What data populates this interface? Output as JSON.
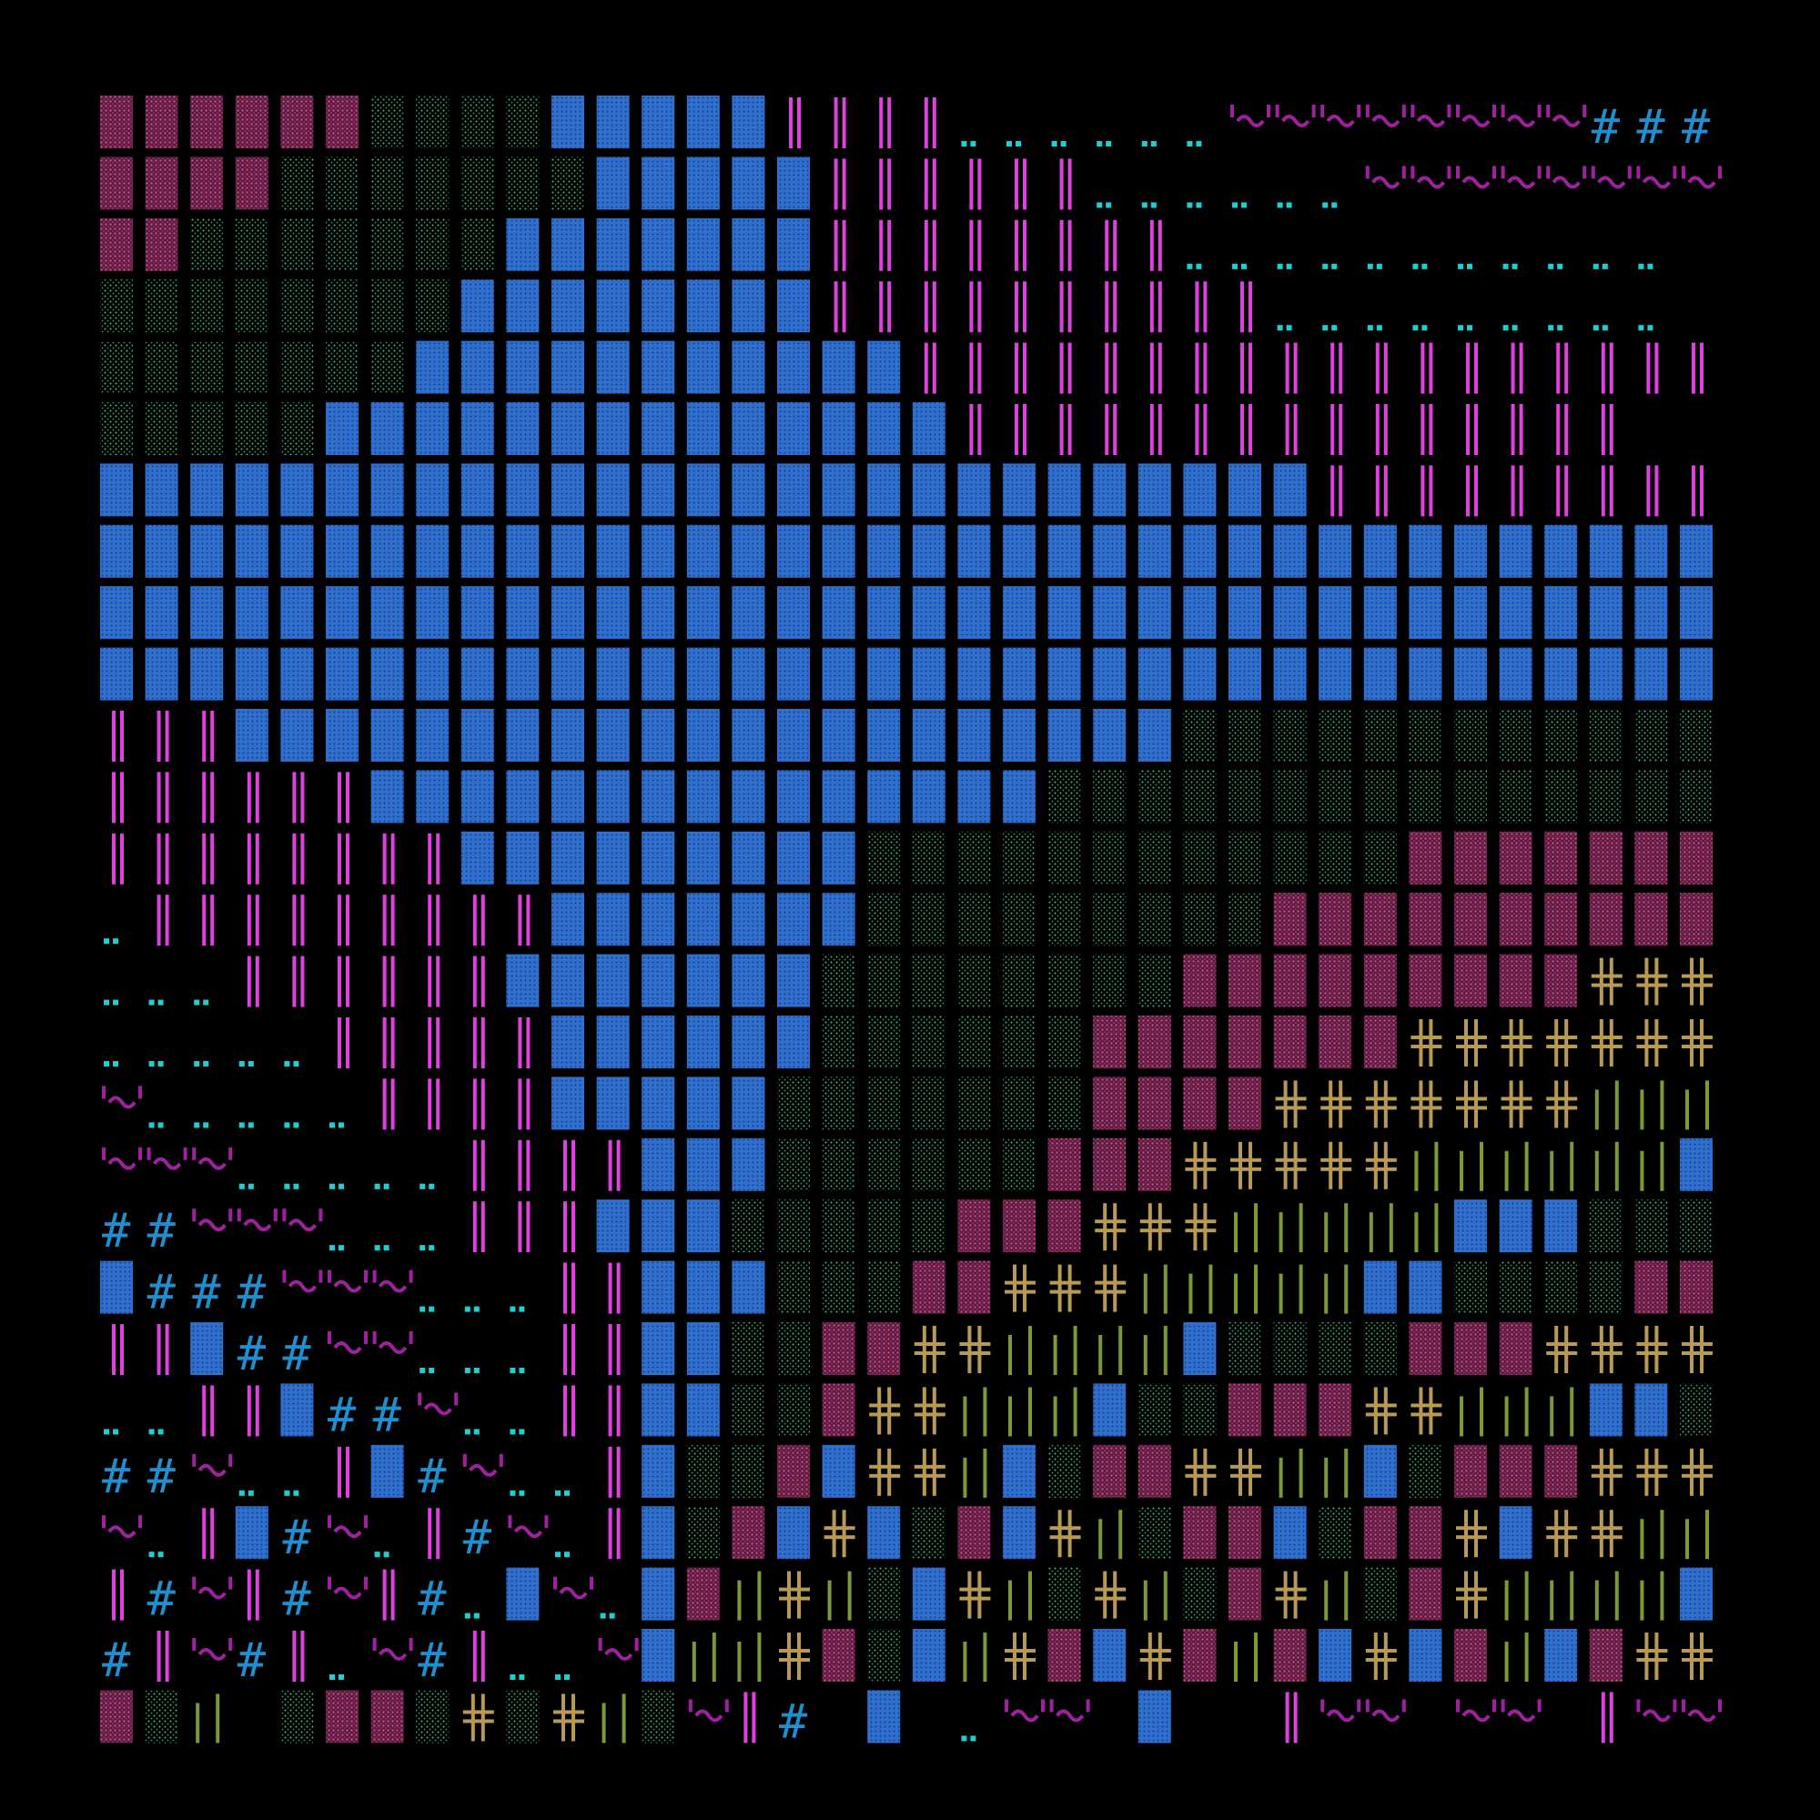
{
  "title": "",
  "palette": {
    "background": "#000000",
    "pink_stipple": "#b83a7a",
    "green_stipple": "#3fbf7f",
    "blue_block": "#2e6fcf",
    "blue_dots": "#1a3d7a",
    "magenta_bars": "#e040e0",
    "cyan_dots": "#1fcfcf",
    "purple_tilde": "#a020a0",
    "blue_hash": "#1f8fd0",
    "tan_cross": "#b89a55",
    "olive_bars": "#7a9a35"
  },
  "glyph_kinds": [
    "pink-stipple",
    "green-stipple",
    "blue-block",
    "magenta-bars",
    "cyan-dots",
    "purple-tilde",
    "blue-hash",
    "tan-cross",
    "olive-bars"
  ],
  "grid": {
    "columns": 36,
    "rows": 27
  }
}
